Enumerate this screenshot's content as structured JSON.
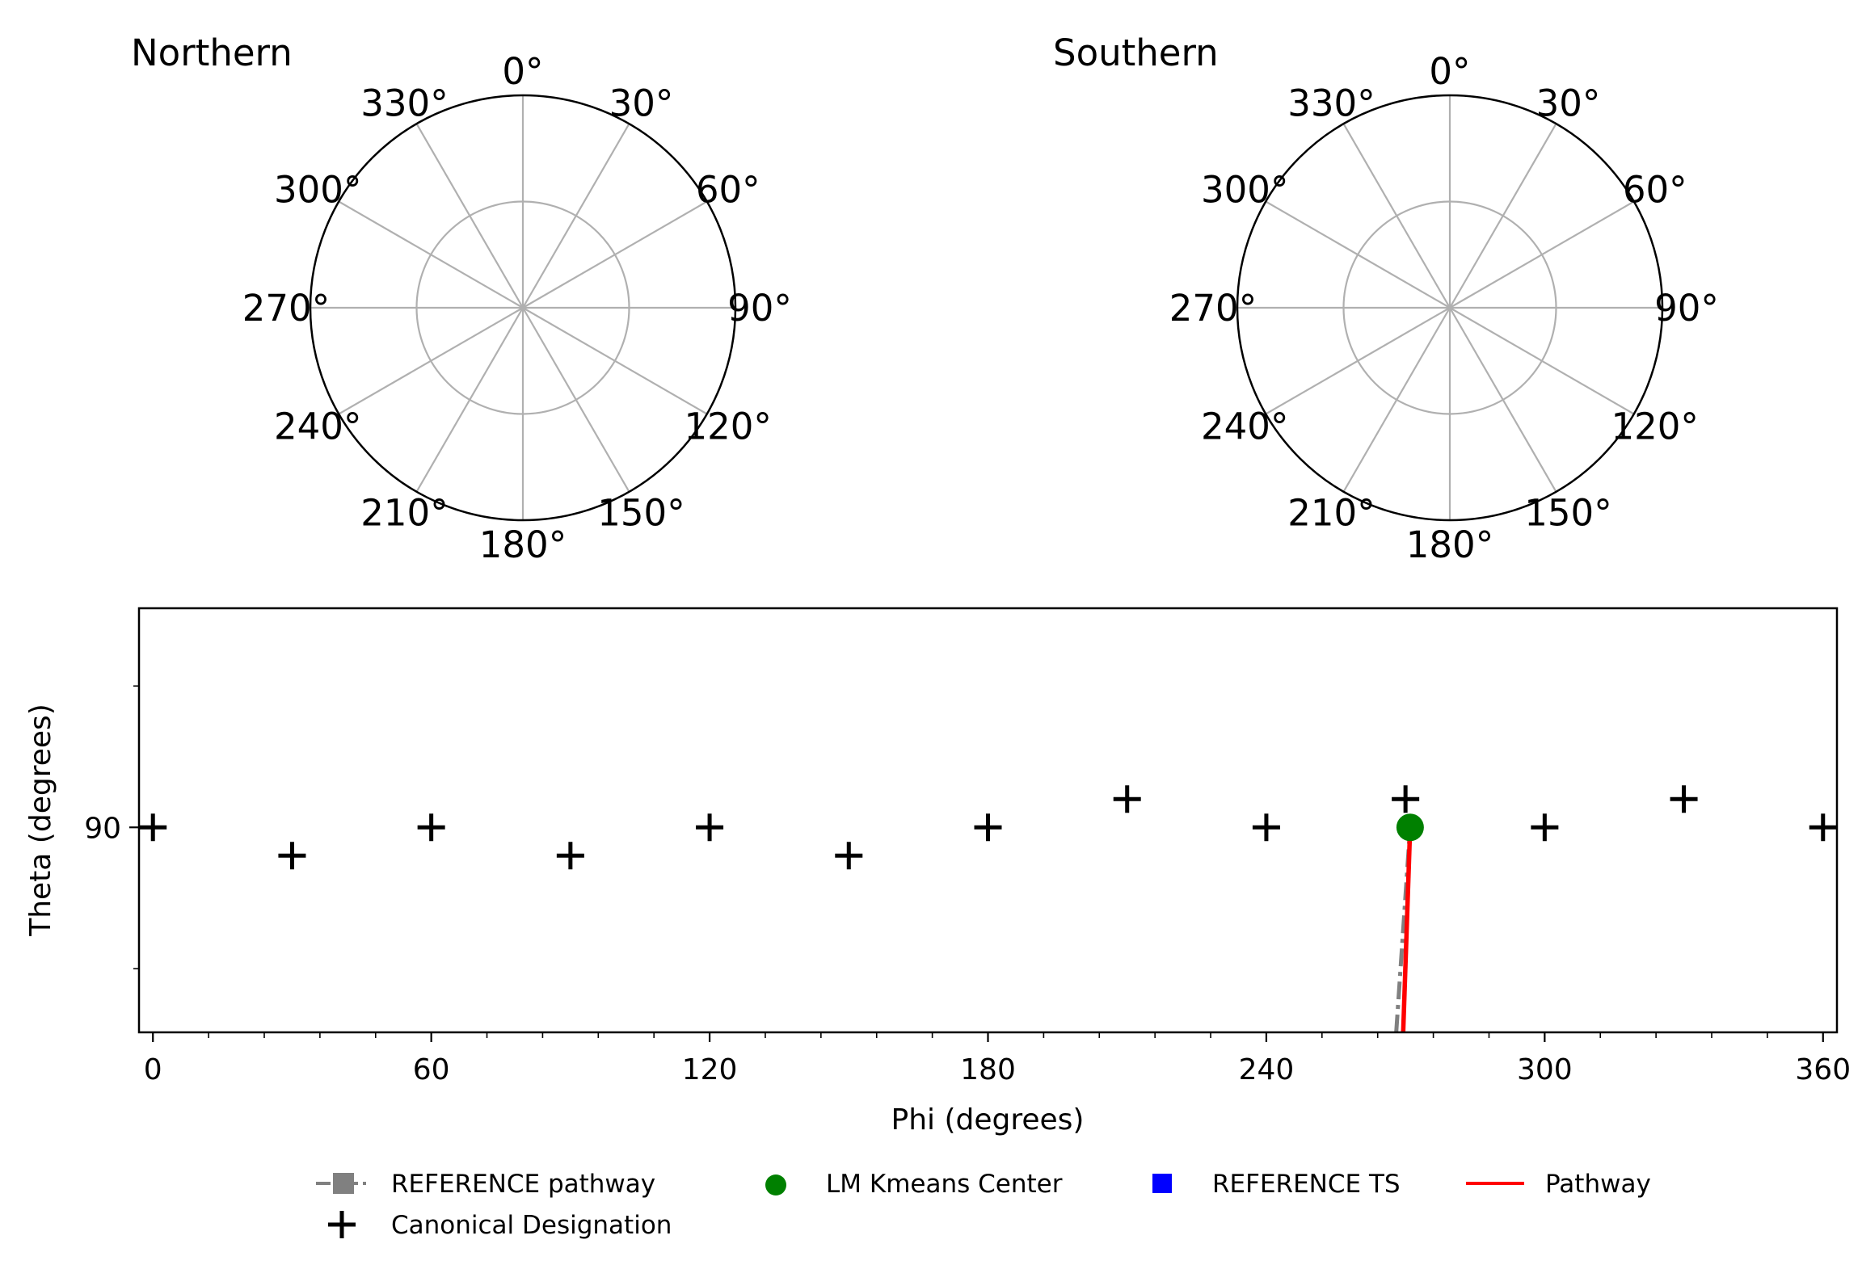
{
  "chart_data": [
    {
      "type": "polar",
      "title": "Northern",
      "angle_tick_labels": [
        "0°",
        "30°",
        "60°",
        "90°",
        "120°",
        "150°",
        "180°",
        "210°",
        "240°",
        "270°",
        "300°",
        "330°"
      ],
      "radial_gridlines": 1,
      "grid": true,
      "series": []
    },
    {
      "type": "polar",
      "title": "Southern",
      "angle_tick_labels": [
        "0°",
        "30°",
        "60°",
        "90°",
        "120°",
        "150°",
        "180°",
        "210°",
        "240°",
        "270°",
        "300°",
        "330°"
      ],
      "radial_gridlines": 1,
      "grid": true,
      "series": []
    },
    {
      "type": "scatter",
      "xlabel": "Phi (degrees)",
      "ylabel": "Theta (degrees)",
      "xlim": [
        -3,
        363
      ],
      "ylim": [
        75.5,
        105.5
      ],
      "xticks": [
        0,
        60,
        120,
        180,
        240,
        300,
        360
      ],
      "xtick_labels": [
        "0",
        "60",
        "120",
        "180",
        "240",
        "300",
        "360"
      ],
      "yticks": [
        90
      ],
      "ytick_labels": [
        "90"
      ],
      "legend": {
        "placement": "bottom-center",
        "entries": [
          {
            "label": "REFERENCE pathway",
            "marker": "square-dashdot",
            "color": "#808080"
          },
          {
            "label": "LM Kmeans Center",
            "marker": "circle",
            "color": "#008000"
          },
          {
            "label": "REFERENCE TS",
            "marker": "square",
            "color": "#0000ff"
          },
          {
            "label": "Pathway",
            "marker": "line",
            "color": "#ff0000"
          },
          {
            "label": "Canonical Designation",
            "marker": "plus",
            "color": "#000000"
          }
        ]
      },
      "series": [
        {
          "name": "Canonical Designation",
          "marker": "plus",
          "color": "#000000",
          "points": [
            [
              0,
              90
            ],
            [
              30,
              88
            ],
            [
              60,
              90
            ],
            [
              90,
              88
            ],
            [
              120,
              90
            ],
            [
              150,
              88
            ],
            [
              180,
              90
            ],
            [
              210,
              92
            ],
            [
              240,
              90
            ],
            [
              270,
              92
            ],
            [
              300,
              90
            ],
            [
              330,
              92
            ],
            [
              360,
              90
            ]
          ]
        },
        {
          "name": "LM Kmeans Center",
          "marker": "circle",
          "color": "#008000",
          "points": [
            [
              271,
              90
            ]
          ]
        },
        {
          "name": "REFERENCE pathway",
          "style": "dashdot",
          "color": "#808080",
          "points": [
            [
              268,
              75.5
            ],
            [
              271,
              90
            ]
          ]
        },
        {
          "name": "Pathway",
          "style": "solid",
          "color": "#ff0000",
          "points": [
            [
              269.5,
              75.5
            ],
            [
              271,
              90
            ]
          ]
        }
      ]
    }
  ]
}
